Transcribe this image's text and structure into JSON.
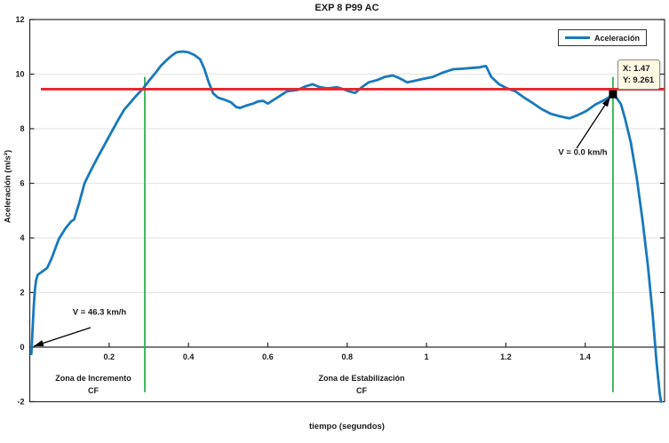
{
  "legend": {
    "label": "Aceleración"
  },
  "datatip": {
    "x_line": "X: 1.47",
    "y_line": "Y: 9.261"
  },
  "annotations": {
    "start_speed": "V = 46.3 km/h",
    "end_speed": "V = 0.0 km/h",
    "zone1_line1": "Zona de Incremento",
    "zone1_line2": "CF",
    "zone2_line1": "Zona de Estabilización",
    "zone2_line2": "CF"
  },
  "colors": {
    "curve": "#1779bd",
    "red_line": "#e8252a",
    "green_line": "#2eb24c",
    "grid": "#e7e7e7",
    "axis": "#2a2a2a",
    "datatip_bg": "#fcf8e2",
    "marker": "#000000"
  },
  "chart_data": {
    "type": "line",
    "title": "EXP 8 P99 AC",
    "xlabel": "tiempo (segundos)",
    "ylabel": "Aceleración (m/s²)",
    "xlim": [
      0,
      1.6
    ],
    "ylim": [
      -2,
      12
    ],
    "xticks": [
      0.2,
      0.4,
      0.6,
      0.8,
      1,
      1.2,
      1.4
    ],
    "xtick_labels": [
      "0.2",
      "0.4",
      "0.6",
      "0.8",
      "1",
      "1.2",
      "1.4"
    ],
    "yticks": [
      12,
      10,
      8,
      6,
      4,
      2,
      0,
      -2
    ],
    "ytick_labels": [
      "12",
      "10",
      "8",
      "6",
      "4",
      "2",
      "0",
      "-2"
    ],
    "grid": "horizontal",
    "grid_y": [
      2,
      4,
      6,
      8,
      10
    ],
    "legend_position": "top-right",
    "series": [
      {
        "name": "Aceleración",
        "color": "#1779bd",
        "points": [
          [
            0.004,
            -0.25
          ],
          [
            0.007,
            0.6
          ],
          [
            0.01,
            1.5
          ],
          [
            0.013,
            2.1
          ],
          [
            0.016,
            2.45
          ],
          [
            0.02,
            2.65
          ],
          [
            0.03,
            2.75
          ],
          [
            0.044,
            2.9
          ],
          [
            0.055,
            3.25
          ],
          [
            0.073,
            3.95
          ],
          [
            0.09,
            4.35
          ],
          [
            0.104,
            4.6
          ],
          [
            0.112,
            4.68
          ],
          [
            0.125,
            5.3
          ],
          [
            0.138,
            6.0
          ],
          [
            0.155,
            6.5
          ],
          [
            0.171,
            6.95
          ],
          [
            0.19,
            7.45
          ],
          [
            0.205,
            7.85
          ],
          [
            0.222,
            8.3
          ],
          [
            0.238,
            8.7
          ],
          [
            0.247,
            8.85
          ],
          [
            0.265,
            9.15
          ],
          [
            0.287,
            9.5
          ],
          [
            0.3,
            9.75
          ],
          [
            0.317,
            10.05
          ],
          [
            0.33,
            10.3
          ],
          [
            0.344,
            10.5
          ],
          [
            0.358,
            10.68
          ],
          [
            0.37,
            10.8
          ],
          [
            0.385,
            10.83
          ],
          [
            0.4,
            10.8
          ],
          [
            0.415,
            10.7
          ],
          [
            0.429,
            10.55
          ],
          [
            0.44,
            10.2
          ],
          [
            0.451,
            9.7
          ],
          [
            0.462,
            9.3
          ],
          [
            0.474,
            9.14
          ],
          [
            0.489,
            9.07
          ],
          [
            0.507,
            8.97
          ],
          [
            0.52,
            8.8
          ],
          [
            0.53,
            8.76
          ],
          [
            0.548,
            8.86
          ],
          [
            0.563,
            8.92
          ],
          [
            0.575,
            9.0
          ],
          [
            0.588,
            9.02
          ],
          [
            0.6,
            8.92
          ],
          [
            0.625,
            9.15
          ],
          [
            0.648,
            9.37
          ],
          [
            0.675,
            9.42
          ],
          [
            0.695,
            9.55
          ],
          [
            0.713,
            9.63
          ],
          [
            0.73,
            9.53
          ],
          [
            0.75,
            9.48
          ],
          [
            0.775,
            9.52
          ],
          [
            0.79,
            9.45
          ],
          [
            0.805,
            9.37
          ],
          [
            0.82,
            9.31
          ],
          [
            0.835,
            9.5
          ],
          [
            0.854,
            9.7
          ],
          [
            0.875,
            9.78
          ],
          [
            0.895,
            9.9
          ],
          [
            0.915,
            9.95
          ],
          [
            0.932,
            9.85
          ],
          [
            0.951,
            9.7
          ],
          [
            0.968,
            9.75
          ],
          [
            0.99,
            9.82
          ],
          [
            1.016,
            9.9
          ],
          [
            1.04,
            10.05
          ],
          [
            1.067,
            10.18
          ],
          [
            1.09,
            10.2
          ],
          [
            1.11,
            10.22
          ],
          [
            1.134,
            10.25
          ],
          [
            1.15,
            10.3
          ],
          [
            1.163,
            9.9
          ],
          [
            1.183,
            9.63
          ],
          [
            1.2,
            9.5
          ],
          [
            1.224,
            9.37
          ],
          [
            1.246,
            9.14
          ],
          [
            1.268,
            8.94
          ],
          [
            1.29,
            8.72
          ],
          [
            1.313,
            8.55
          ],
          [
            1.335,
            8.46
          ],
          [
            1.36,
            8.38
          ],
          [
            1.38,
            8.49
          ],
          [
            1.403,
            8.65
          ],
          [
            1.425,
            8.88
          ],
          [
            1.447,
            9.04
          ],
          [
            1.462,
            9.17
          ],
          [
            1.47,
            9.261
          ],
          [
            1.478,
            9.15
          ],
          [
            1.49,
            8.9
          ],
          [
            1.5,
            8.4
          ],
          [
            1.515,
            7.5
          ],
          [
            1.53,
            6.2
          ],
          [
            1.545,
            4.6
          ],
          [
            1.558,
            3.0
          ],
          [
            1.57,
            1.2
          ],
          [
            1.58,
            -0.6
          ],
          [
            1.588,
            -1.7
          ],
          [
            1.591,
            -2.0
          ]
        ]
      }
    ],
    "reference_lines": {
      "red_horizontal_y": 9.45,
      "red_x_range": [
        0.028,
        1.6
      ],
      "green_vertical_x": [
        0.29,
        1.47
      ],
      "green_vertical_yrange": [
        -1.65,
        9.9
      ]
    },
    "datatip_point": {
      "x": 1.47,
      "y": 9.261
    },
    "arrow_annotations": [
      {
        "label": "V = 46.3 km/h",
        "target_xy": [
          0.01,
          0.0
        ]
      },
      {
        "label": "V = 0.0 km/h",
        "target_xy": [
          1.47,
          9.261
        ]
      }
    ]
  }
}
